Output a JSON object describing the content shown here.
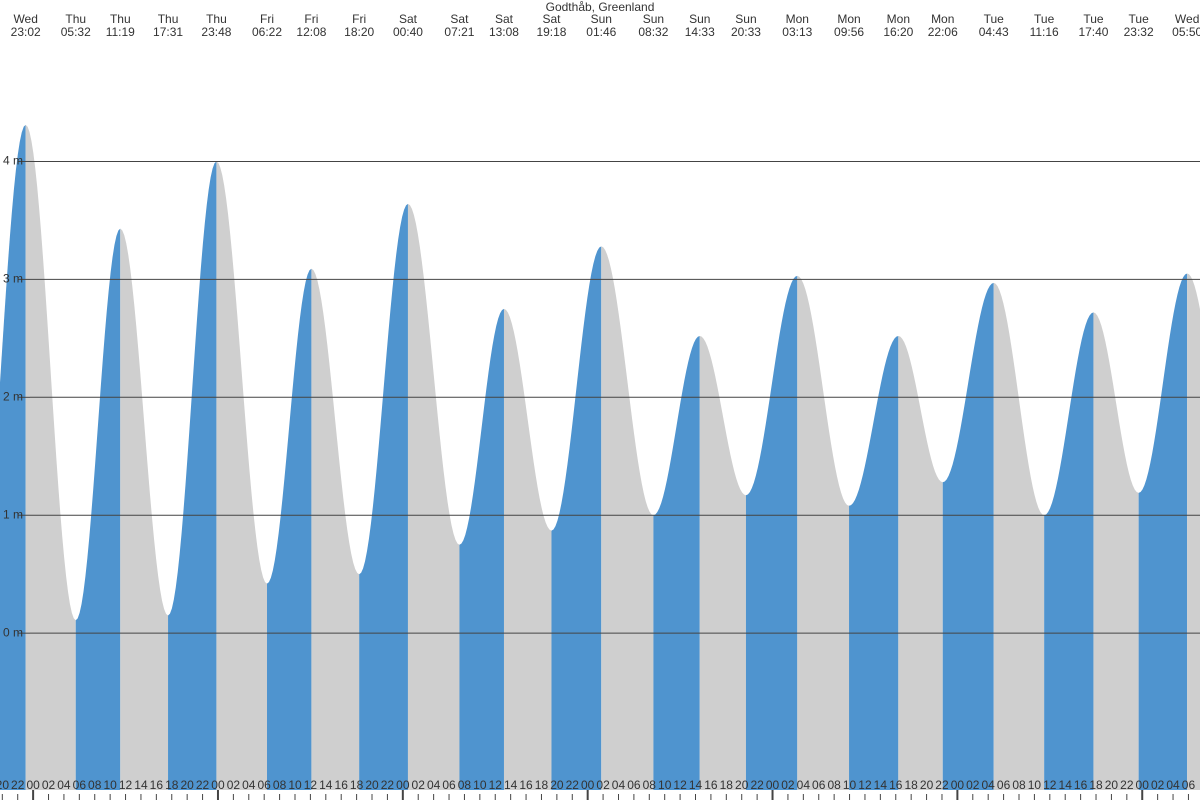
{
  "chart_data": {
    "type": "tide",
    "title": "Godthåb, Greenland",
    "rising_color": "#4f94cf",
    "falling_color": "#cfcfcf",
    "grid": true,
    "extremes": [
      {
        "day": "Wed",
        "time": "23:02",
        "height": 4.31
      },
      {
        "day": "Thu",
        "time": "05:32",
        "height": 0.11
      },
      {
        "day": "Thu",
        "time": "11:19",
        "height": 3.43
      },
      {
        "day": "Thu",
        "time": "17:31",
        "height": 0.15
      },
      {
        "day": "Thu",
        "time": "23:48",
        "height": 4.0
      },
      {
        "day": "Fri",
        "time": "06:22",
        "height": 0.42
      },
      {
        "day": "Fri",
        "time": "12:08",
        "height": 3.09
      },
      {
        "day": "Fri",
        "time": "18:20",
        "height": 0.5
      },
      {
        "day": "Sat",
        "time": "00:40",
        "height": 3.64
      },
      {
        "day": "Sat",
        "time": "07:21",
        "height": 0.75
      },
      {
        "day": "Sat",
        "time": "13:08",
        "height": 2.75
      },
      {
        "day": "Sat",
        "time": "19:18",
        "height": 0.87
      },
      {
        "day": "Sun",
        "time": "01:46",
        "height": 3.28
      },
      {
        "day": "Sun",
        "time": "08:32",
        "height": 1.0
      },
      {
        "day": "Sun",
        "time": "14:33",
        "height": 2.52
      },
      {
        "day": "Sun",
        "time": "20:33",
        "height": 1.17
      },
      {
        "day": "Mon",
        "time": "03:13",
        "height": 3.03
      },
      {
        "day": "Mon",
        "time": "09:56",
        "height": 1.08
      },
      {
        "day": "Mon",
        "time": "16:20",
        "height": 2.52
      },
      {
        "day": "Mon",
        "time": "22:06",
        "height": 1.28
      },
      {
        "day": "Tue",
        "time": "04:43",
        "height": 2.97
      },
      {
        "day": "Tue",
        "time": "11:16",
        "height": 1.0
      },
      {
        "day": "Tue",
        "time": "17:40",
        "height": 2.72
      },
      {
        "day": "Tue",
        "time": "23:32",
        "height": 1.19
      },
      {
        "day": "Wed",
        "time": "05:50",
        "height": 3.05
      }
    ],
    "ylim": [
      -1.33,
      5.03
    ],
    "yticks": [
      {
        "value": 0,
        "label": "0 m"
      },
      {
        "value": 1,
        "label": "1 m"
      },
      {
        "value": 2,
        "label": "2 m"
      },
      {
        "value": 3,
        "label": "3 m"
      },
      {
        "value": 4,
        "label": "4 m"
      }
    ],
    "xlim": [
      19.7,
      175.5
    ],
    "xticks": [
      20,
      22,
      {
        "value": 24,
        "label": "00"
      },
      {
        "value": 26,
        "label": "02"
      },
      {
        "value": 28,
        "label": "04"
      },
      {
        "value": 30,
        "label": "06"
      },
      {
        "value": 32,
        "label": "08"
      },
      {
        "value": 34,
        "label": "10"
      },
      {
        "value": 36,
        "label": "12"
      },
      {
        "value": 38,
        "label": "14"
      },
      {
        "value": 40,
        "label": "16"
      },
      {
        "value": 42,
        "label": "18"
      },
      {
        "value": 44,
        "label": "20"
      },
      {
        "value": 46,
        "label": "22"
      },
      {
        "value": 48,
        "label": "00"
      },
      {
        "value": 50,
        "label": "02"
      },
      {
        "value": 52,
        "label": "04"
      },
      {
        "value": 54,
        "label": "06"
      },
      {
        "value": 56,
        "label": "08"
      },
      {
        "value": 58,
        "label": "10"
      },
      {
        "value": 60,
        "label": "12"
      },
      {
        "value": 62,
        "label": "14"
      },
      {
        "value": 64,
        "label": "16"
      },
      {
        "value": 66,
        "label": "18"
      },
      {
        "value": 68,
        "label": "20"
      },
      {
        "value": 70,
        "label": "22"
      },
      {
        "value": 72,
        "label": "00"
      },
      {
        "value": 74,
        "label": "02"
      },
      {
        "value": 76,
        "label": "04"
      },
      {
        "value": 78,
        "label": "06"
      },
      {
        "value": 80,
        "label": "08"
      },
      {
        "value": 82,
        "label": "10"
      },
      {
        "value": 84,
        "label": "12"
      },
      {
        "value": 86,
        "label": "14"
      },
      {
        "value": 88,
        "label": "16"
      },
      {
        "value": 90,
        "label": "18"
      },
      {
        "value": 92,
        "label": "20"
      },
      {
        "value": 94,
        "label": "22"
      },
      {
        "value": 96,
        "label": "00"
      },
      {
        "value": 98,
        "label": "02"
      },
      {
        "value": 100,
        "label": "04"
      },
      {
        "value": 102,
        "label": "06"
      },
      {
        "value": 104,
        "label": "08"
      },
      {
        "value": 106,
        "label": "10"
      },
      {
        "value": 108,
        "label": "12"
      },
      {
        "value": 110,
        "label": "14"
      },
      {
        "value": 112,
        "label": "16"
      },
      {
        "value": 114,
        "label": "18"
      },
      {
        "value": 116,
        "label": "20"
      },
      {
        "value": 118,
        "label": "22"
      },
      {
        "value": 120,
        "label": "00"
      },
      {
        "value": 122,
        "label": "02"
      },
      {
        "value": 124,
        "label": "04"
      },
      {
        "value": 126,
        "label": "06"
      },
      {
        "value": 128,
        "label": "08"
      },
      {
        "value": 130,
        "label": "10"
      },
      {
        "value": 132,
        "label": "12"
      },
      {
        "value": 134,
        "label": "14"
      },
      {
        "value": 136,
        "label": "16"
      },
      {
        "value": 138,
        "label": "18"
      },
      {
        "value": 140,
        "label": "20"
      },
      {
        "value": 142,
        "label": "22"
      },
      {
        "value": 144,
        "label": "00"
      },
      {
        "value": 146,
        "label": "02"
      },
      {
        "value": 148,
        "label": "04"
      },
      {
        "value": 150,
        "label": "06"
      },
      {
        "value": 152,
        "label": "08"
      },
      {
        "value": 154,
        "label": "10"
      },
      {
        "value": 156,
        "label": "12"
      },
      {
        "value": 158,
        "label": "14"
      },
      {
        "value": 160,
        "label": "16"
      },
      {
        "value": 162,
        "label": "18"
      },
      {
        "value": 164,
        "label": "20"
      },
      {
        "value": 166,
        "label": "22"
      },
      {
        "value": 168,
        "label": "00"
      },
      {
        "value": 170,
        "label": "02"
      },
      {
        "value": 172,
        "label": "04"
      },
      {
        "value": 174,
        "label": "06"
      }
    ]
  }
}
